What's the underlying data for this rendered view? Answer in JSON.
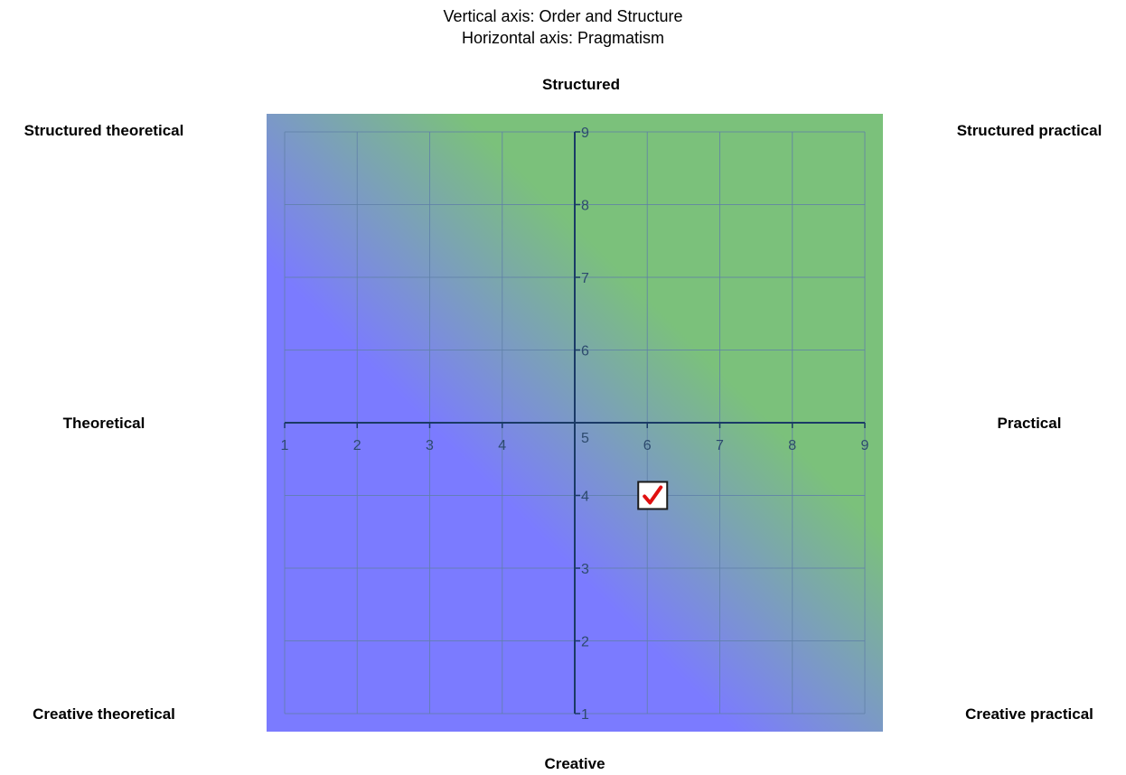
{
  "header": {
    "line1": "Vertical axis: Order and Structure",
    "line2": "Horizontal axis: Pragmatism"
  },
  "labels": {
    "top": "Structured",
    "bottom": "Creative",
    "top_left": "Structured theoretical",
    "top_right": "Structured practical",
    "middle_left": "Theoretical",
    "middle_right": "Practical",
    "bottom_left": "Creative theoretical",
    "bottom_right": "Creative practical"
  },
  "colors": {
    "gradient_low": "#7b7bff",
    "gradient_high": "#7bc17b",
    "grid": "#5f7fa7",
    "axis": "#1a3a66",
    "tick_label": "#2d4a6e",
    "marker_check": "#e01010"
  },
  "chart_data": {
    "type": "scatter",
    "xlim": [
      1,
      9
    ],
    "ylim": [
      1,
      9
    ],
    "x_ticks": [
      1,
      2,
      3,
      4,
      5,
      6,
      7,
      8,
      9
    ],
    "y_ticks": [
      1,
      2,
      3,
      4,
      5,
      6,
      7,
      8,
      9
    ],
    "axes_cross_at": [
      5,
      5
    ],
    "grid": true,
    "points": [
      {
        "x": 6,
        "y": 4,
        "marker": "checkmark-icon"
      }
    ]
  }
}
